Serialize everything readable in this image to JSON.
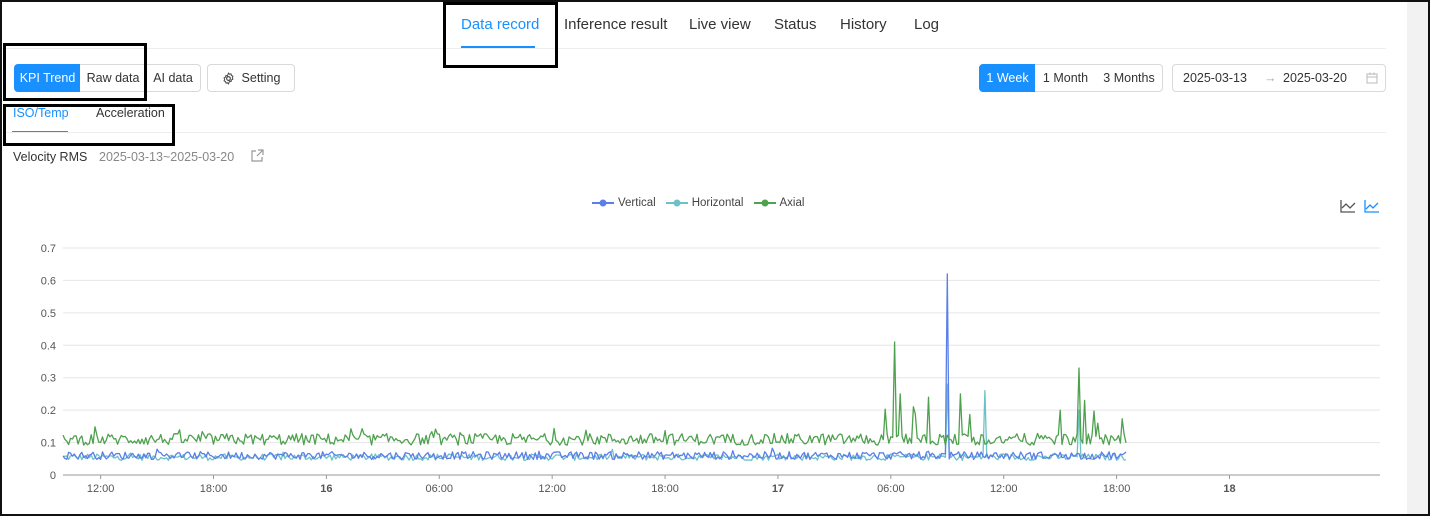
{
  "nav": {
    "tabs": [
      {
        "label": "Data record",
        "active": true
      },
      {
        "label": "Inference result",
        "active": false
      },
      {
        "label": "Live view",
        "active": false
      },
      {
        "label": "Status",
        "active": false
      },
      {
        "label": "History",
        "active": false
      },
      {
        "label": "Log",
        "active": false
      }
    ]
  },
  "toolbar": {
    "view_modes": [
      {
        "label": "KPI Trend",
        "active": true
      },
      {
        "label": "Raw data",
        "active": false
      },
      {
        "label": "AI data",
        "active": false
      }
    ],
    "setting_label": "Setting",
    "setting_icon": "gear-icon",
    "periods": [
      {
        "label": "1 Week",
        "active": true
      },
      {
        "label": "1 Month",
        "active": false
      },
      {
        "label": "3 Months",
        "active": false
      }
    ],
    "date_start": "2025-03-13",
    "date_separator": "→",
    "date_end": "2025-03-20",
    "calendar_icon": "calendar-icon"
  },
  "sub_tabs": [
    {
      "label": "ISO/Temp",
      "active": true
    },
    {
      "label": "Acceleration",
      "active": false
    }
  ],
  "panel": {
    "title": "Velocity RMS",
    "range": "2025-03-13~2025-03-20",
    "export_icon": "external-link-icon"
  },
  "colors": {
    "accent": "#1890ff",
    "vertical": "#5b7fe8",
    "horizontal": "#6cc1c8",
    "axial": "#4ea14e"
  },
  "chart_data": {
    "type": "line",
    "ylim": [
      0,
      0.7
    ],
    "y_ticks": [
      "0",
      "0.1",
      "0.2",
      "0.3",
      "0.4",
      "0.5",
      "0.6",
      "0.7"
    ],
    "x_ticks": [
      "12:00",
      "18:00",
      "16",
      "06:00",
      "12:00",
      "18:00",
      "17",
      "06:00",
      "12:00",
      "18:00",
      "18"
    ],
    "x_tick_bold": [
      false,
      false,
      true,
      false,
      false,
      false,
      true,
      false,
      false,
      false,
      true
    ],
    "x_range_hours": [
      "2025-03-15 10:00",
      "2025-03-18 08:00"
    ],
    "data_end": "2025-03-17 18:30",
    "grid": true,
    "legend_placement": "top-center",
    "series": [
      {
        "name": "Vertical",
        "baseline": 0.06,
        "noise": 0.012,
        "spikes": [
          {
            "t": "2025-03-17 09:00",
            "v": 0.62
          }
        ]
      },
      {
        "name": "Horizontal",
        "baseline": 0.055,
        "noise": 0.01,
        "spikes": [
          {
            "t": "2025-03-17 09:00",
            "v": 0.28
          },
          {
            "t": "2025-03-17 11:00",
            "v": 0.26
          },
          {
            "t": "2025-03-17 16:00",
            "v": 0.2
          }
        ]
      },
      {
        "name": "Axial",
        "baseline": 0.11,
        "noise": 0.018,
        "spikes": [
          {
            "t": "2025-03-17 06:10",
            "v": 0.41
          },
          {
            "t": "2025-03-17 06:30",
            "v": 0.25
          },
          {
            "t": "2025-03-17 08:00",
            "v": 0.24
          },
          {
            "t": "2025-03-17 09:40",
            "v": 0.25
          },
          {
            "t": "2025-03-17 15:00",
            "v": 0.2
          },
          {
            "t": "2025-03-17 16:00",
            "v": 0.33
          },
          {
            "t": "2025-03-17 16:20",
            "v": 0.23
          }
        ]
      }
    ],
    "toolbox_icons": [
      "line-chart-icon",
      "area-chart-icon"
    ]
  }
}
